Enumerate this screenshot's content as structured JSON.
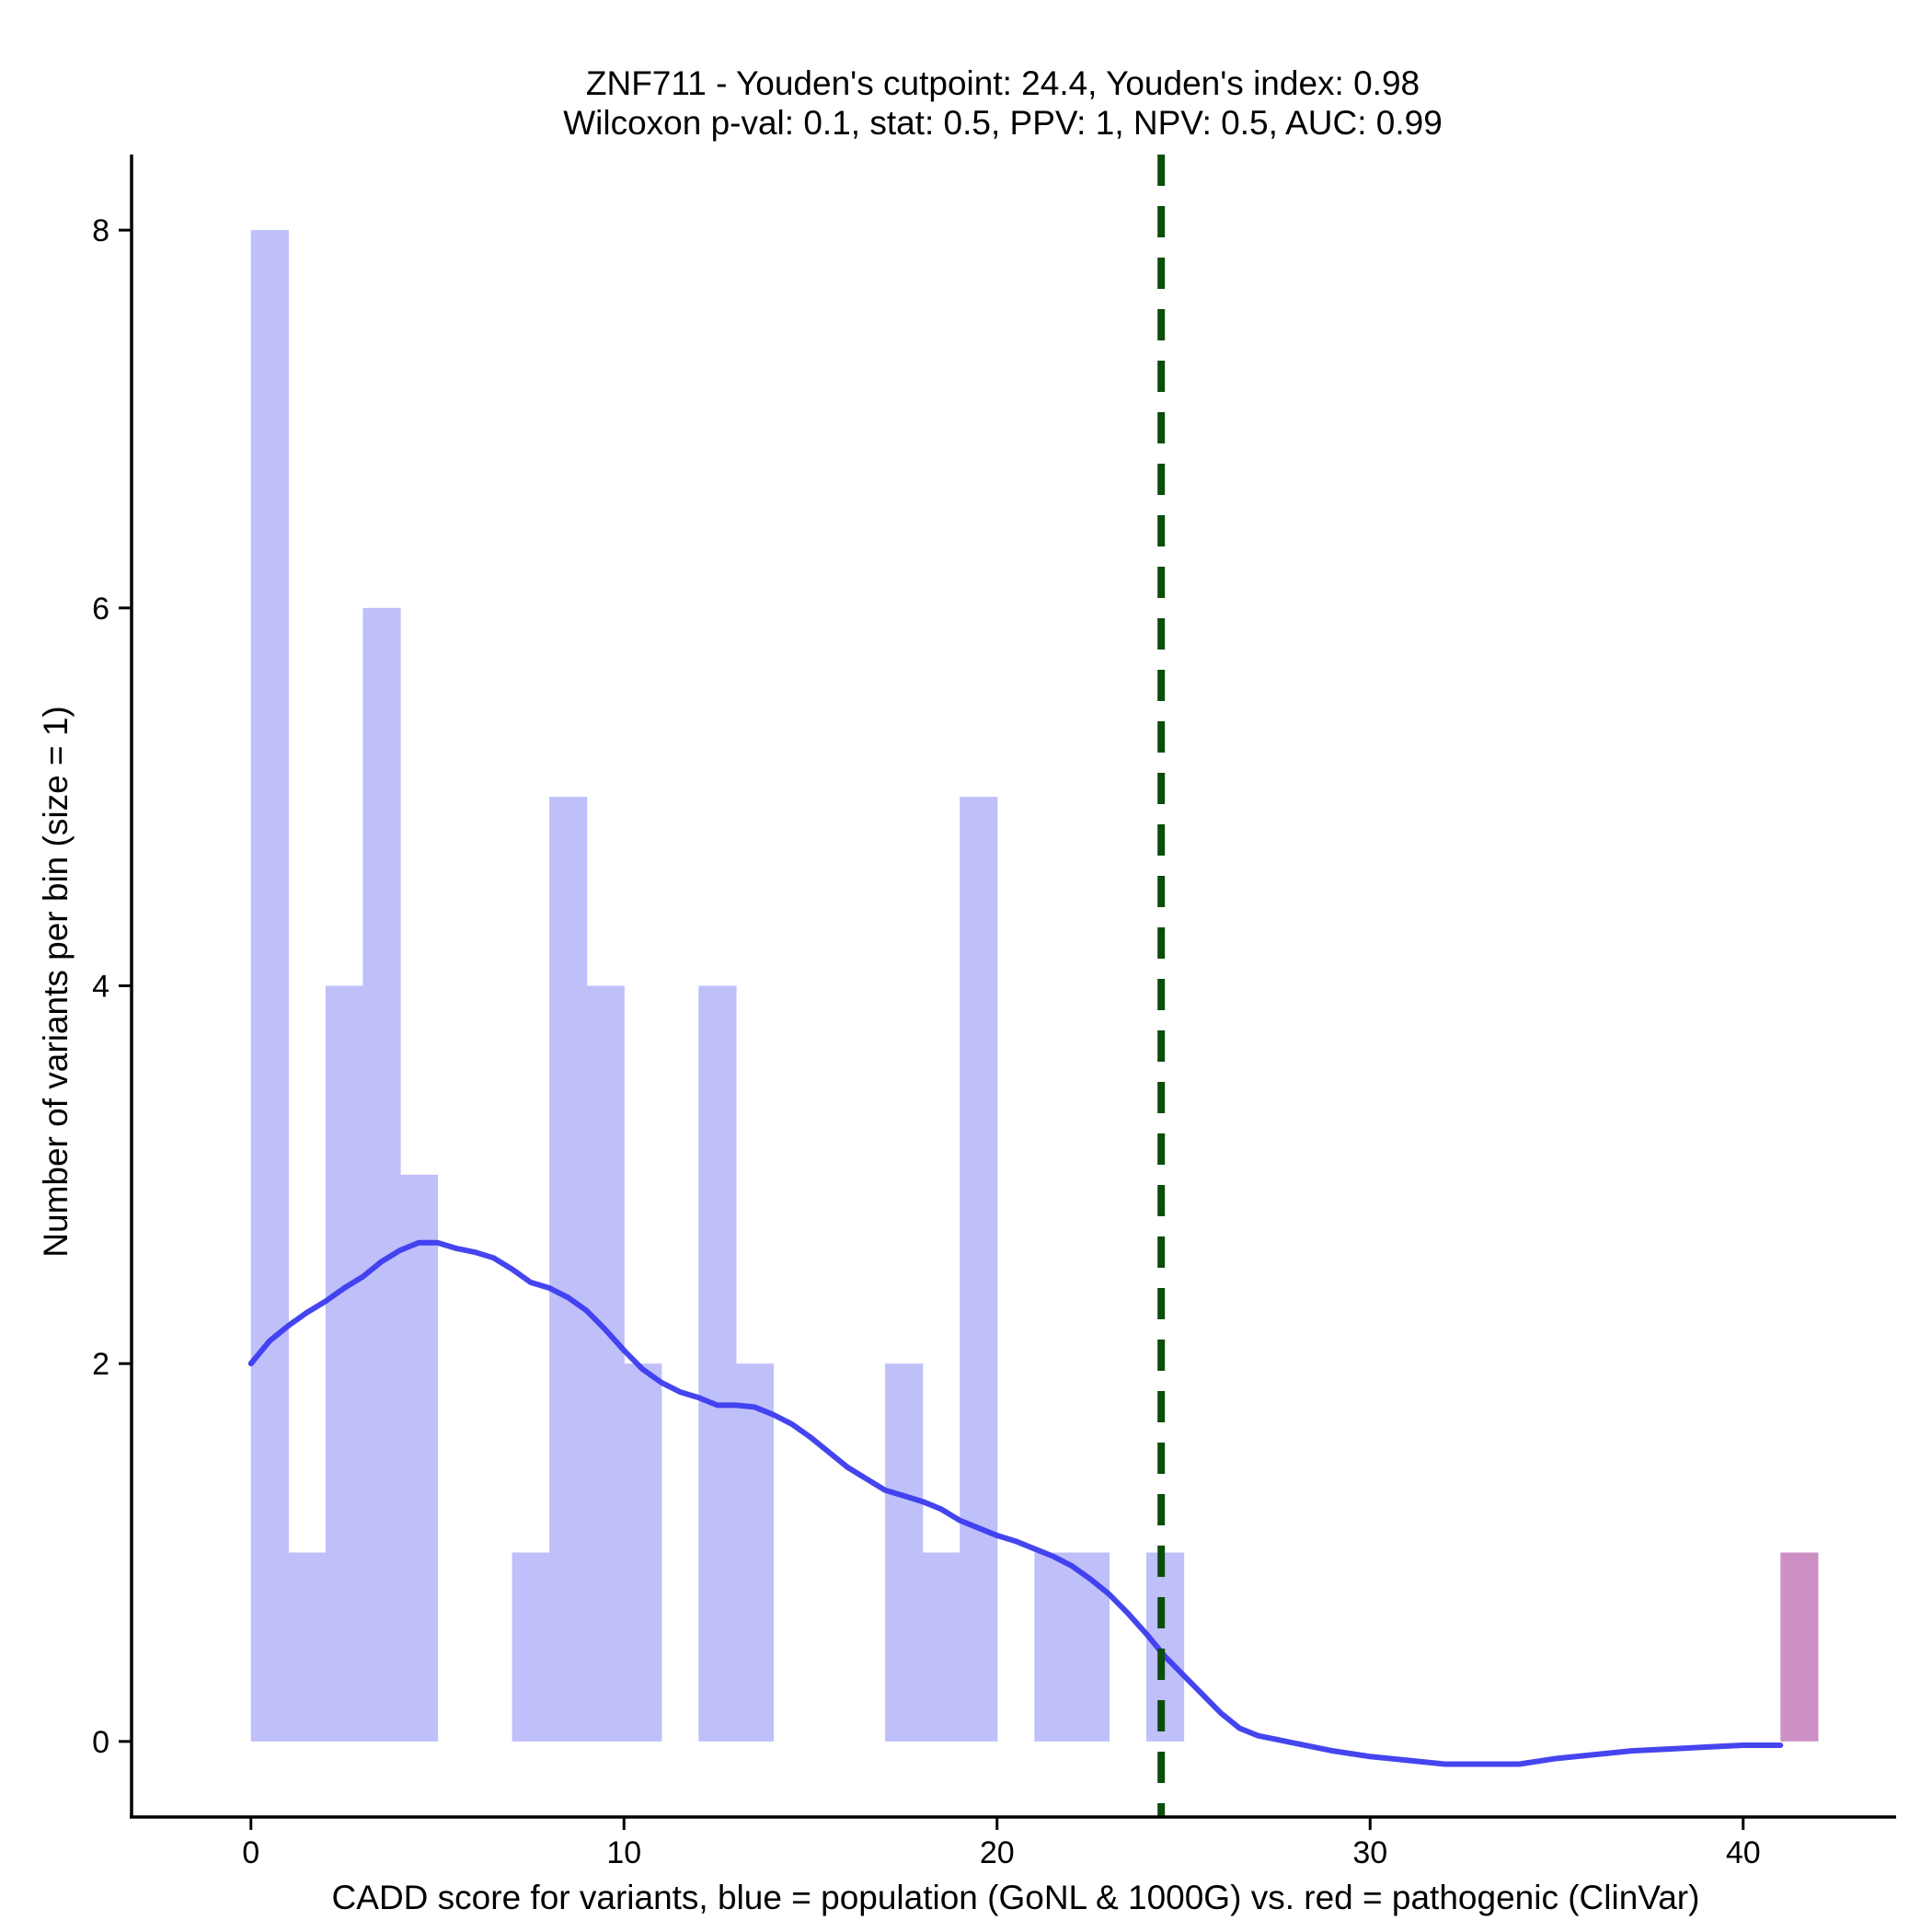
{
  "chart_data": {
    "type": "bar",
    "title_lines": [
      "ZNF711 - Youden's cutpoint: 24.4, Youden's index: 0.98",
      "Wilcoxon p-val: 0.1, stat: 0.5, PPV: 1, NPV: 0.5, AUC: 0.99"
    ],
    "xlabel": "CADD score for variants, blue = population (GoNL & 1000G) vs. red = pathogenic (ClinVar)",
    "ylabel": "Number of variants per bin (size = 1)",
    "xlim": [
      -3.2,
      44.1
    ],
    "ylim": [
      -0.4,
      8.4
    ],
    "x_ticks": [
      0,
      10,
      20,
      30,
      40
    ],
    "y_ticks": [
      0,
      2,
      4,
      6,
      8
    ],
    "cutpoint": 24.4,
    "bin_size": 1,
    "colors": {
      "population": "#bfbffa",
      "pathogenic": "#cc90c4",
      "density": "#3b3bef",
      "cutpoint": "#0b4d0b"
    },
    "series": [
      {
        "name": "population",
        "bins": [
          {
            "x0": 0,
            "count": 8
          },
          {
            "x0": 1,
            "count": 1
          },
          {
            "x0": 2,
            "count": 4
          },
          {
            "x0": 3,
            "count": 6
          },
          {
            "x0": 4,
            "count": 3
          },
          {
            "x0": 7,
            "count": 1
          },
          {
            "x0": 8,
            "count": 5
          },
          {
            "x0": 9,
            "count": 4
          },
          {
            "x0": 10,
            "count": 2
          },
          {
            "x0": 12,
            "count": 4
          },
          {
            "x0": 13,
            "count": 2
          },
          {
            "x0": 17,
            "count": 2
          },
          {
            "x0": 18,
            "count": 1
          },
          {
            "x0": 19,
            "count": 5
          },
          {
            "x0": 21,
            "count": 1
          },
          {
            "x0": 22,
            "count": 1
          },
          {
            "x0": 24,
            "count": 1
          }
        ]
      },
      {
        "name": "pathogenic",
        "bins": [
          {
            "x0": 41,
            "count": 1
          }
        ]
      }
    ],
    "density_curve": [
      [
        0,
        2.0
      ],
      [
        0.5,
        2.12
      ],
      [
        1,
        2.2
      ],
      [
        1.5,
        2.27
      ],
      [
        2,
        2.33
      ],
      [
        2.5,
        2.4
      ],
      [
        3,
        2.46
      ],
      [
        3.5,
        2.54
      ],
      [
        4,
        2.6
      ],
      [
        4.5,
        2.64
      ],
      [
        5,
        2.64
      ],
      [
        5.5,
        2.61
      ],
      [
        6,
        2.59
      ],
      [
        6.5,
        2.56
      ],
      [
        7,
        2.5
      ],
      [
        7.5,
        2.43
      ],
      [
        8,
        2.4
      ],
      [
        8.5,
        2.35
      ],
      [
        9,
        2.28
      ],
      [
        9.5,
        2.18
      ],
      [
        10,
        2.07
      ],
      [
        10.5,
        1.97
      ],
      [
        11,
        1.9
      ],
      [
        11.5,
        1.85
      ],
      [
        12,
        1.82
      ],
      [
        12.5,
        1.78
      ],
      [
        13,
        1.78
      ],
      [
        13.5,
        1.77
      ],
      [
        14,
        1.73
      ],
      [
        14.5,
        1.68
      ],
      [
        15,
        1.61
      ],
      [
        15.5,
        1.53
      ],
      [
        16,
        1.45
      ],
      [
        16.5,
        1.39
      ],
      [
        17,
        1.33
      ],
      [
        17.5,
        1.3
      ],
      [
        18,
        1.27
      ],
      [
        18.5,
        1.23
      ],
      [
        19,
        1.17
      ],
      [
        19.5,
        1.13
      ],
      [
        20,
        1.09
      ],
      [
        20.5,
        1.06
      ],
      [
        21,
        1.02
      ],
      [
        21.5,
        0.98
      ],
      [
        22,
        0.93
      ],
      [
        22.5,
        0.86
      ],
      [
        23,
        0.78
      ],
      [
        23.5,
        0.68
      ],
      [
        24,
        0.57
      ],
      [
        24.5,
        0.45
      ],
      [
        25,
        0.35
      ],
      [
        25.5,
        0.25
      ],
      [
        26,
        0.15
      ],
      [
        26.5,
        0.07
      ],
      [
        27,
        0.03
      ],
      [
        28,
        -0.01
      ],
      [
        29,
        -0.05
      ],
      [
        30,
        -0.08
      ],
      [
        31,
        -0.1
      ],
      [
        32,
        -0.12
      ],
      [
        33,
        -0.12
      ],
      [
        34,
        -0.12
      ],
      [
        35,
        -0.09
      ],
      [
        36,
        -0.07
      ],
      [
        37,
        -0.05
      ],
      [
        38,
        -0.04
      ],
      [
        39,
        -0.03
      ],
      [
        40,
        -0.02
      ],
      [
        41,
        -0.02
      ]
    ]
  }
}
